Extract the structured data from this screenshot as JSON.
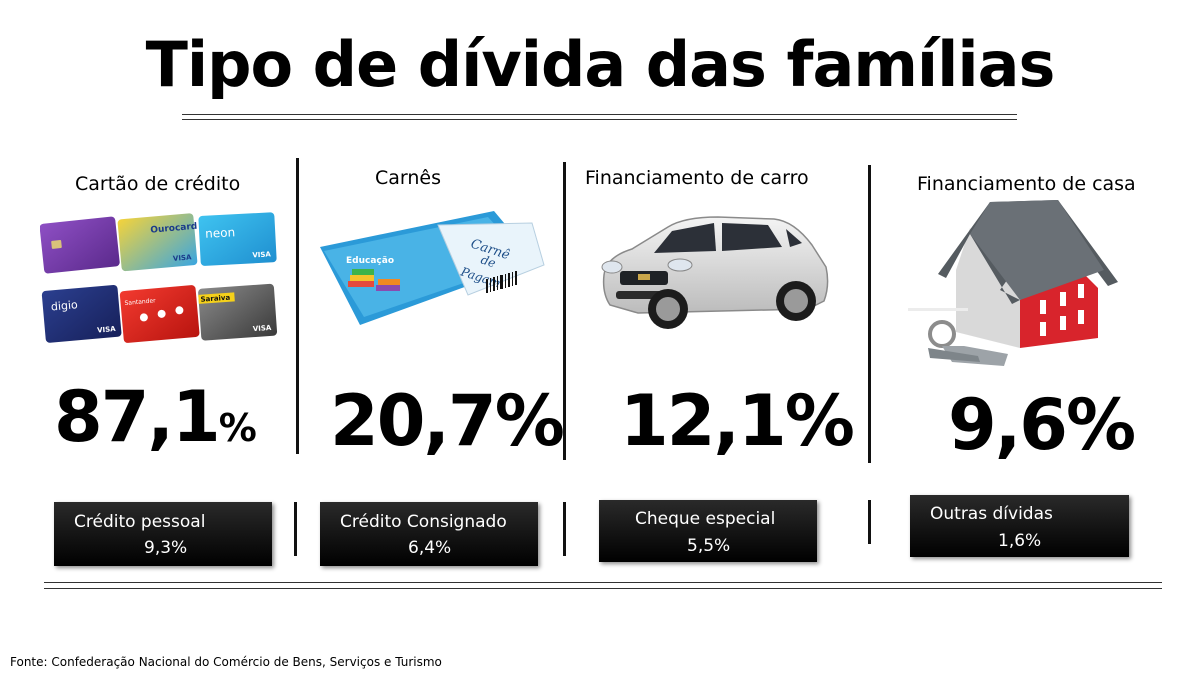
{
  "title": "Tipo de dívida das famílias",
  "categories": [
    {
      "label": "Cartão de crédito",
      "percent_main": "87,1",
      "percent_sign": "%",
      "icon": "credit-cards-image"
    },
    {
      "label": "Carnês",
      "percent": "20,7%",
      "icon": "payment-booklet-image"
    },
    {
      "label": "Financiamento de carro",
      "percent": "12,1%",
      "icon": "car-image"
    },
    {
      "label": "Financiamento de casa",
      "percent": "9,6%",
      "icon": "house-with-keys-image"
    }
  ],
  "other_debts": [
    {
      "label": "Crédito pessoal",
      "percent": "9,3%"
    },
    {
      "label": "Crédito Consignado",
      "percent": "6,4%"
    },
    {
      "label": "Cheque especial",
      "percent": "5,5%"
    },
    {
      "label": "Outras dívidas",
      "percent": "1,6%"
    }
  ],
  "card_texts": {
    "ourocard": "Ourocard",
    "neon": "neon",
    "digio": "digio",
    "santander": "Santander",
    "saraiva": "Saraiva",
    "visa": "VISA"
  },
  "booklet_texts": {
    "educacao": "Educação",
    "carne": "Carnê",
    "de": "de",
    "pagamento": "Pagam"
  },
  "source": "Fonte: Confederação Nacional do Comércio de Bens, Serviços e Turismo",
  "colors": {
    "box_bg": "#000000",
    "house_wall": "#d8242c",
    "roof": "#555b60"
  }
}
